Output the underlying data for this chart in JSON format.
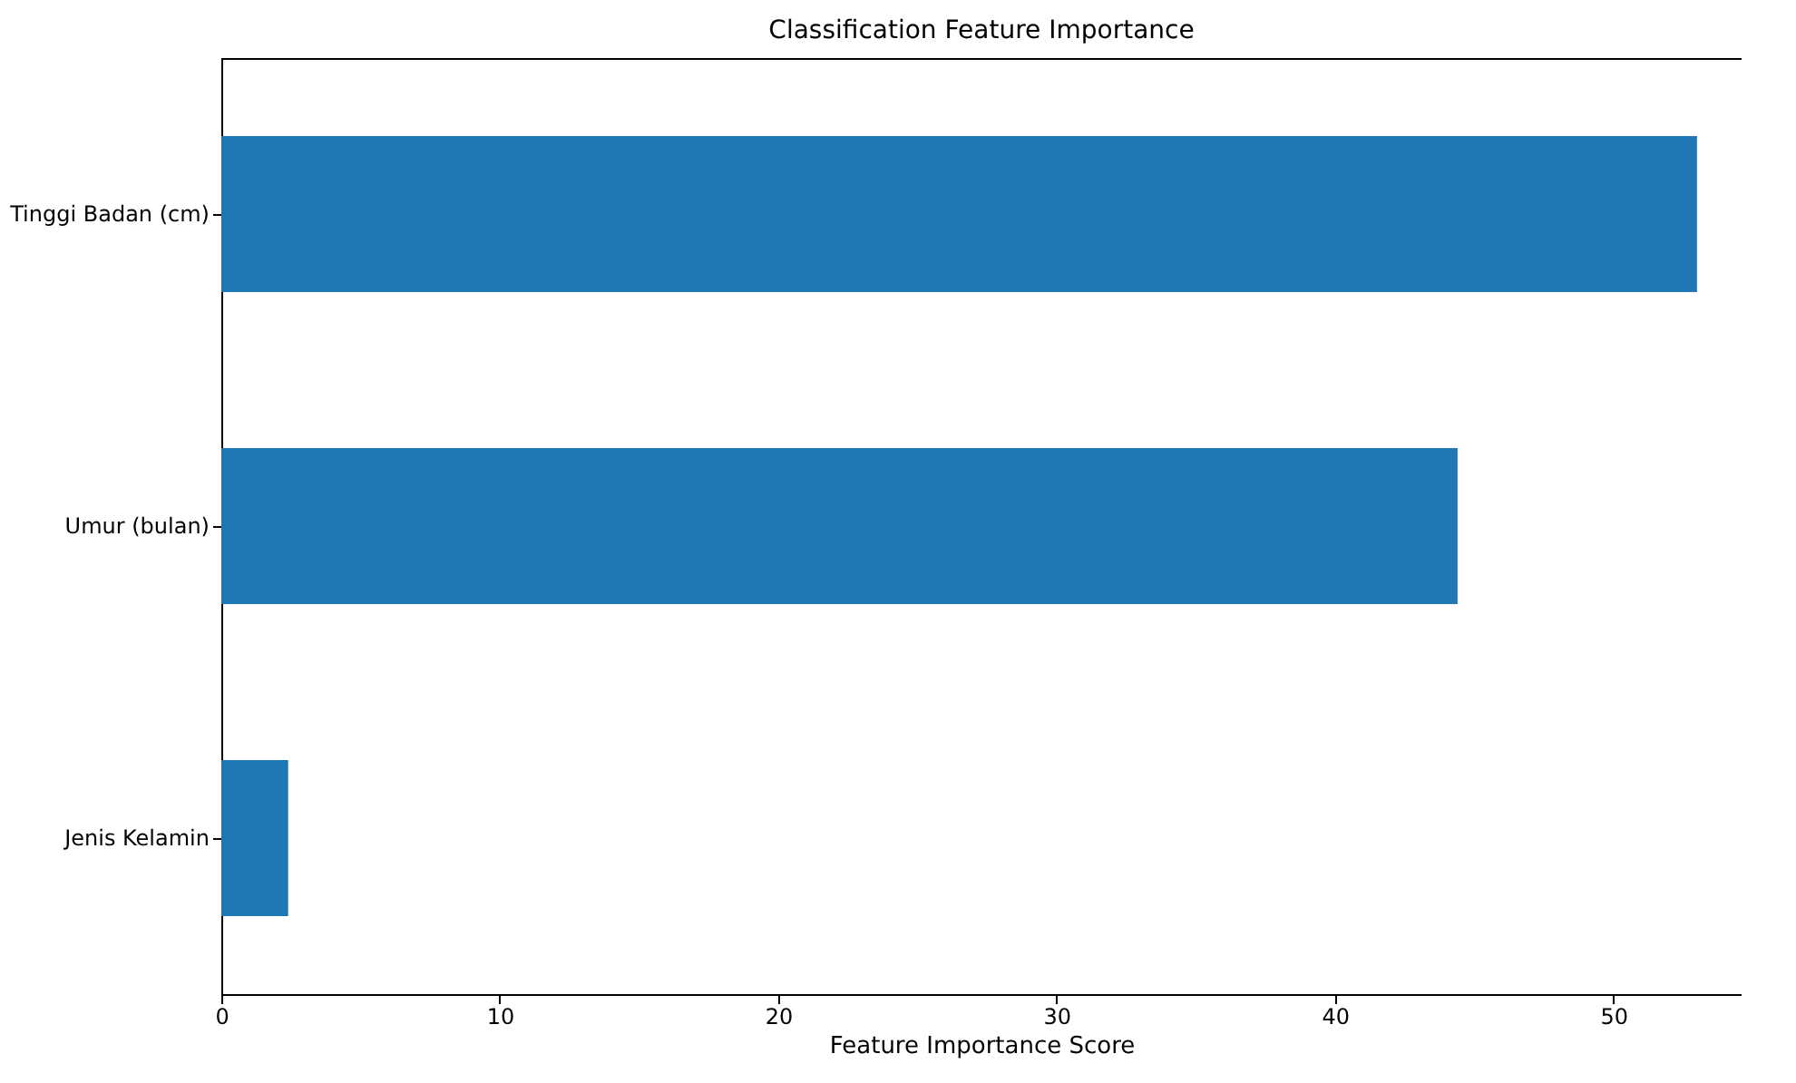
{
  "chart_data": {
    "type": "bar",
    "orientation": "horizontal",
    "title": "Classification Feature Importance",
    "xlabel": "Feature Importance Score",
    "categories": [
      "Tinggi Badan (cm)",
      "Umur (bulan)",
      "Jenis Kelamin"
    ],
    "values": [
      53.0,
      44.4,
      2.4
    ],
    "color": "#1f77b4",
    "xlim": [
      0,
      54.6
    ],
    "xticks": [
      0,
      10,
      20,
      30,
      40,
      50
    ],
    "grid": false
  }
}
